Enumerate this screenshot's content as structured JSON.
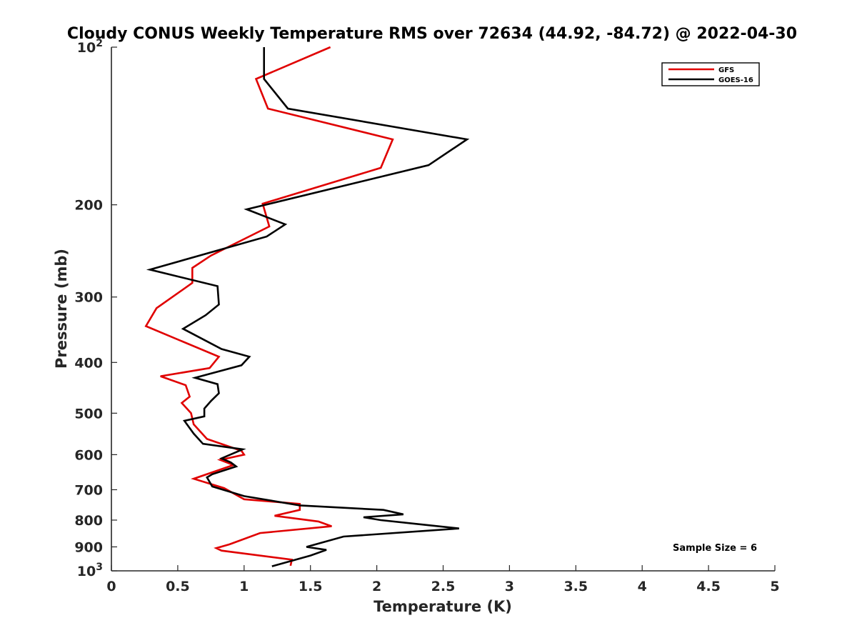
{
  "chart_data": {
    "type": "line",
    "title": "Cloudy CONUS Weekly Temperature RMS over 72634 (44.92, -84.72) @ 2022-04-30",
    "xlabel": "Temperature (K)",
    "ylabel": "Pressure (mb)",
    "xlim": [
      0,
      5
    ],
    "ylim": [
      100,
      1000
    ],
    "y_scale": "log",
    "y_reversed": true,
    "grid": false,
    "legend_position": "top-right",
    "x_ticks": [
      "0",
      "0.5",
      "1",
      "1.5",
      "2",
      "2.5",
      "3",
      "3.5",
      "4",
      "4.5",
      "5"
    ],
    "y_ticks": [
      {
        "value": 100,
        "base": "10",
        "exp": "2"
      },
      {
        "value": 200,
        "label": "200"
      },
      {
        "value": 300,
        "label": "300"
      },
      {
        "value": 400,
        "label": "400"
      },
      {
        "value": 500,
        "label": "500"
      },
      {
        "value": 600,
        "label": "600"
      },
      {
        "value": 700,
        "label": "700"
      },
      {
        "value": 800,
        "label": "800"
      },
      {
        "value": 900,
        "label": "900"
      },
      {
        "value": 1000,
        "base": "10",
        "exp": "3"
      }
    ],
    "annotation": "Sample Size = 6",
    "series": [
      {
        "name": "GFS",
        "color": "#e00000",
        "points": [
          [
            1.65,
            100
          ],
          [
            1.09,
            115
          ],
          [
            1.18,
            131
          ],
          [
            2.12,
            150
          ],
          [
            2.03,
            170
          ],
          [
            1.14,
            199
          ],
          [
            1.19,
            220
          ],
          [
            0.75,
            250
          ],
          [
            0.61,
            264
          ],
          [
            0.61,
            282
          ],
          [
            0.34,
            315
          ],
          [
            0.26,
            341
          ],
          [
            0.81,
            390
          ],
          [
            0.74,
            410
          ],
          [
            0.37,
            425
          ],
          [
            0.56,
            442
          ],
          [
            0.59,
            465
          ],
          [
            0.53,
            478
          ],
          [
            0.6,
            500
          ],
          [
            0.62,
            525
          ],
          [
            0.72,
            560
          ],
          [
            0.98,
            590
          ],
          [
            1.0,
            600
          ],
          [
            0.82,
            614
          ],
          [
            0.92,
            628
          ],
          [
            0.62,
            667
          ],
          [
            0.85,
            695
          ],
          [
            1.0,
            730
          ],
          [
            1.42,
            745
          ],
          [
            1.42,
            765
          ],
          [
            1.23,
            785
          ],
          [
            1.56,
            805
          ],
          [
            1.66,
            822
          ],
          [
            1.12,
            847
          ],
          [
            0.89,
            890
          ],
          [
            0.79,
            905
          ],
          [
            0.83,
            915
          ],
          [
            1.36,
            952
          ],
          [
            1.35,
            978
          ]
        ]
      },
      {
        "name": "GOES-16",
        "color": "#000000",
        "points": [
          [
            1.15,
            100
          ],
          [
            1.15,
            115
          ],
          [
            1.33,
            131
          ],
          [
            2.68,
            150
          ],
          [
            2.39,
            168
          ],
          [
            1.02,
            204
          ],
          [
            1.31,
            218
          ],
          [
            1.17,
            230
          ],
          [
            0.29,
            266
          ],
          [
            0.8,
            286
          ],
          [
            0.81,
            310
          ],
          [
            0.71,
            325
          ],
          [
            0.54,
            345
          ],
          [
            0.83,
            377
          ],
          [
            1.04,
            390
          ],
          [
            0.98,
            405
          ],
          [
            0.63,
            428
          ],
          [
            0.8,
            440
          ],
          [
            0.81,
            458
          ],
          [
            0.75,
            474
          ],
          [
            0.7,
            490
          ],
          [
            0.7,
            507
          ],
          [
            0.55,
            517
          ],
          [
            0.62,
            547
          ],
          [
            0.69,
            572
          ],
          [
            0.99,
            586
          ],
          [
            0.83,
            610
          ],
          [
            0.9,
            621
          ],
          [
            0.94,
            632
          ],
          [
            0.76,
            654
          ],
          [
            0.72,
            663
          ],
          [
            0.76,
            690
          ],
          [
            1.0,
            720
          ],
          [
            1.42,
            750
          ],
          [
            2.05,
            765
          ],
          [
            2.2,
            780
          ],
          [
            1.9,
            790
          ],
          [
            2.03,
            800
          ],
          [
            2.33,
            815
          ],
          [
            2.62,
            830
          ],
          [
            1.75,
            860
          ],
          [
            1.47,
            900
          ],
          [
            1.62,
            912
          ],
          [
            1.5,
            935
          ],
          [
            1.21,
            980
          ]
        ]
      }
    ]
  }
}
